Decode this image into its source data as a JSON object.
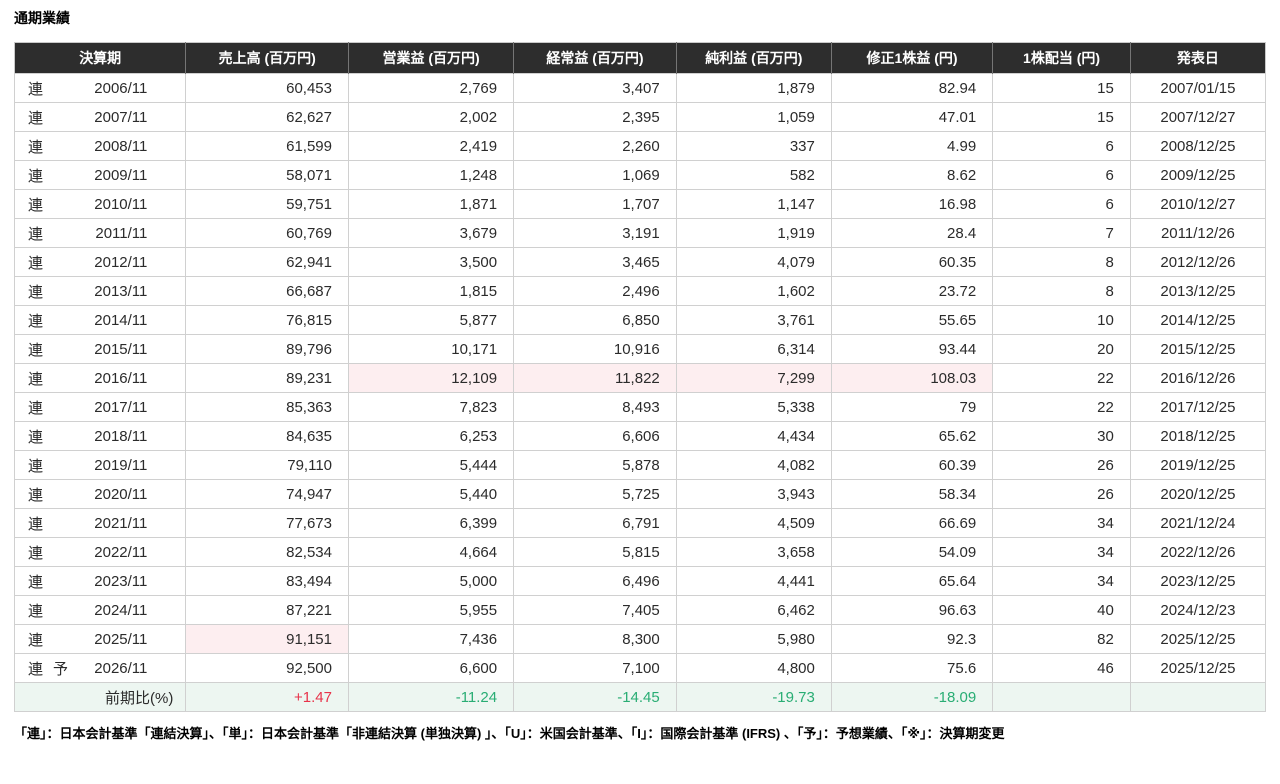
{
  "title": "通期業績",
  "table": {
    "headers": [
      "決算期",
      "売上高 (百万円)",
      "営業益 (百万円)",
      "経常益 (百万円)",
      "純利益 (百万円)",
      "修正1株益 (円)",
      "1株配当 (円)",
      "発表日"
    ],
    "rows": [
      {
        "marker": "連",
        "forecast": "",
        "period": "2006/11",
        "sales": "60,453",
        "op": "2,769",
        "ord": "3,407",
        "net": "1,879",
        "eps": "82.94",
        "div": "15",
        "date": "2007/01/15",
        "hl": []
      },
      {
        "marker": "連",
        "forecast": "",
        "period": "2007/11",
        "sales": "62,627",
        "op": "2,002",
        "ord": "2,395",
        "net": "1,059",
        "eps": "47.01",
        "div": "15",
        "date": "2007/12/27",
        "hl": []
      },
      {
        "marker": "連",
        "forecast": "",
        "period": "2008/11",
        "sales": "61,599",
        "op": "2,419",
        "ord": "2,260",
        "net": "337",
        "eps": "4.99",
        "div": "6",
        "date": "2008/12/25",
        "hl": []
      },
      {
        "marker": "連",
        "forecast": "",
        "period": "2009/11",
        "sales": "58,071",
        "op": "1,248",
        "ord": "1,069",
        "net": "582",
        "eps": "8.62",
        "div": "6",
        "date": "2009/12/25",
        "hl": []
      },
      {
        "marker": "連",
        "forecast": "",
        "period": "2010/11",
        "sales": "59,751",
        "op": "1,871",
        "ord": "1,707",
        "net": "1,147",
        "eps": "16.98",
        "div": "6",
        "date": "2010/12/27",
        "hl": []
      },
      {
        "marker": "連",
        "forecast": "",
        "period": "2011/11",
        "sales": "60,769",
        "op": "3,679",
        "ord": "3,191",
        "net": "1,919",
        "eps": "28.4",
        "div": "7",
        "date": "2011/12/26",
        "hl": []
      },
      {
        "marker": "連",
        "forecast": "",
        "period": "2012/11",
        "sales": "62,941",
        "op": "3,500",
        "ord": "3,465",
        "net": "4,079",
        "eps": "60.35",
        "div": "8",
        "date": "2012/12/26",
        "hl": []
      },
      {
        "marker": "連",
        "forecast": "",
        "period": "2013/11",
        "sales": "66,687",
        "op": "1,815",
        "ord": "2,496",
        "net": "1,602",
        "eps": "23.72",
        "div": "8",
        "date": "2013/12/25",
        "hl": []
      },
      {
        "marker": "連",
        "forecast": "",
        "period": "2014/11",
        "sales": "76,815",
        "op": "5,877",
        "ord": "6,850",
        "net": "3,761",
        "eps": "55.65",
        "div": "10",
        "date": "2014/12/25",
        "hl": []
      },
      {
        "marker": "連",
        "forecast": "",
        "period": "2015/11",
        "sales": "89,796",
        "op": "10,171",
        "ord": "10,916",
        "net": "6,314",
        "eps": "93.44",
        "div": "20",
        "date": "2015/12/25",
        "hl": []
      },
      {
        "marker": "連",
        "forecast": "",
        "period": "2016/11",
        "sales": "89,231",
        "op": "12,109",
        "ord": "11,822",
        "net": "7,299",
        "eps": "108.03",
        "div": "22",
        "date": "2016/12/26",
        "hl": [
          "op",
          "ord",
          "net",
          "eps"
        ]
      },
      {
        "marker": "連",
        "forecast": "",
        "period": "2017/11",
        "sales": "85,363",
        "op": "7,823",
        "ord": "8,493",
        "net": "5,338",
        "eps": "79",
        "div": "22",
        "date": "2017/12/25",
        "hl": []
      },
      {
        "marker": "連",
        "forecast": "",
        "period": "2018/11",
        "sales": "84,635",
        "op": "6,253",
        "ord": "6,606",
        "net": "4,434",
        "eps": "65.62",
        "div": "30",
        "date": "2018/12/25",
        "hl": []
      },
      {
        "marker": "連",
        "forecast": "",
        "period": "2019/11",
        "sales": "79,110",
        "op": "5,444",
        "ord": "5,878",
        "net": "4,082",
        "eps": "60.39",
        "div": "26",
        "date": "2019/12/25",
        "hl": []
      },
      {
        "marker": "連",
        "forecast": "",
        "period": "2020/11",
        "sales": "74,947",
        "op": "5,440",
        "ord": "5,725",
        "net": "3,943",
        "eps": "58.34",
        "div": "26",
        "date": "2020/12/25",
        "hl": []
      },
      {
        "marker": "連",
        "forecast": "",
        "period": "2021/11",
        "sales": "77,673",
        "op": "6,399",
        "ord": "6,791",
        "net": "4,509",
        "eps": "66.69",
        "div": "34",
        "date": "2021/12/24",
        "hl": []
      },
      {
        "marker": "連",
        "forecast": "",
        "period": "2022/11",
        "sales": "82,534",
        "op": "4,664",
        "ord": "5,815",
        "net": "3,658",
        "eps": "54.09",
        "div": "34",
        "date": "2022/12/26",
        "hl": []
      },
      {
        "marker": "連",
        "forecast": "",
        "period": "2023/11",
        "sales": "83,494",
        "op": "5,000",
        "ord": "6,496",
        "net": "4,441",
        "eps": "65.64",
        "div": "34",
        "date": "2023/12/25",
        "hl": []
      },
      {
        "marker": "連",
        "forecast": "",
        "period": "2024/11",
        "sales": "87,221",
        "op": "5,955",
        "ord": "7,405",
        "net": "6,462",
        "eps": "96.63",
        "div": "40",
        "date": "2024/12/23",
        "hl": []
      },
      {
        "marker": "連",
        "forecast": "",
        "period": "2025/11",
        "sales": "91,151",
        "op": "7,436",
        "ord": "8,300",
        "net": "5,980",
        "eps": "92.3",
        "div": "82",
        "date": "2025/12/25",
        "hl": [
          "sales"
        ]
      },
      {
        "marker": "連",
        "forecast": "予",
        "period": "2026/11",
        "sales": "92,500",
        "op": "6,600",
        "ord": "7,100",
        "net": "4,800",
        "eps": "75.6",
        "div": "46",
        "date": "2025/12/25",
        "hl": []
      }
    ],
    "change_row": {
      "label": "前期比(%)",
      "sales": "+1.47",
      "op": "-11.24",
      "ord": "-14.45",
      "net": "-19.73",
      "eps": "-18.09",
      "div": "",
      "date": ""
    }
  },
  "footnote": "「連」：日本会計基準「連結決算」、「単」：日本会計基準「非連結決算 (単独決算) 」、「U」：米国会計基準、「I」：国際会計基準 (IFRS) 、「予」：予想業績、「※」：決算期変更",
  "colors": {
    "header_bg": "#2d2d2d",
    "record_highlight": "#fdeef0",
    "change_row_bg": "#edf6f1",
    "positive_change": "#e8334a",
    "negative_change": "#29ad74"
  }
}
